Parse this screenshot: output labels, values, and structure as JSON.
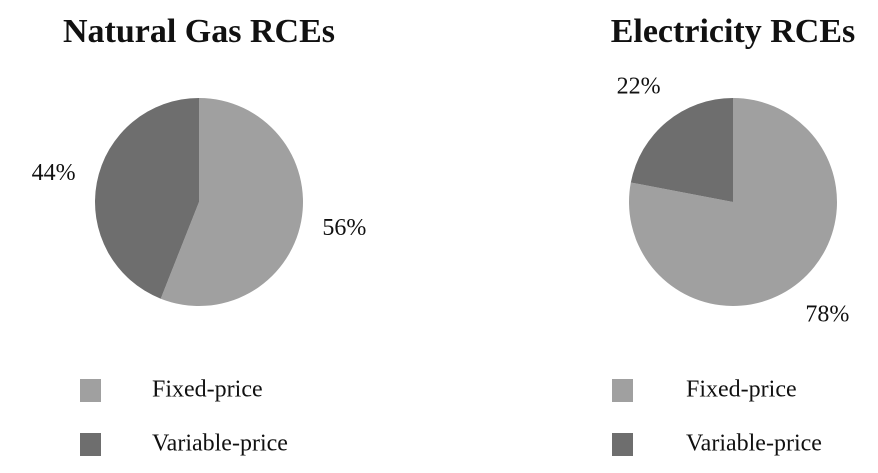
{
  "chart_data": [
    {
      "type": "pie",
      "title": "Natural Gas RCEs",
      "categories": [
        "Fixed-price",
        "Variable-price"
      ],
      "values": [
        56,
        44
      ],
      "value_labels": [
        "56%",
        "44%"
      ],
      "colors": [
        "#a0a0a0",
        "#6e6e6e"
      ]
    },
    {
      "type": "pie",
      "title": "Electricity RCEs",
      "categories": [
        "Fixed-price",
        "Variable-price"
      ],
      "values": [
        78,
        22
      ],
      "value_labels": [
        "78%",
        "22%"
      ],
      "colors": [
        "#a0a0a0",
        "#6e6e6e"
      ]
    }
  ]
}
